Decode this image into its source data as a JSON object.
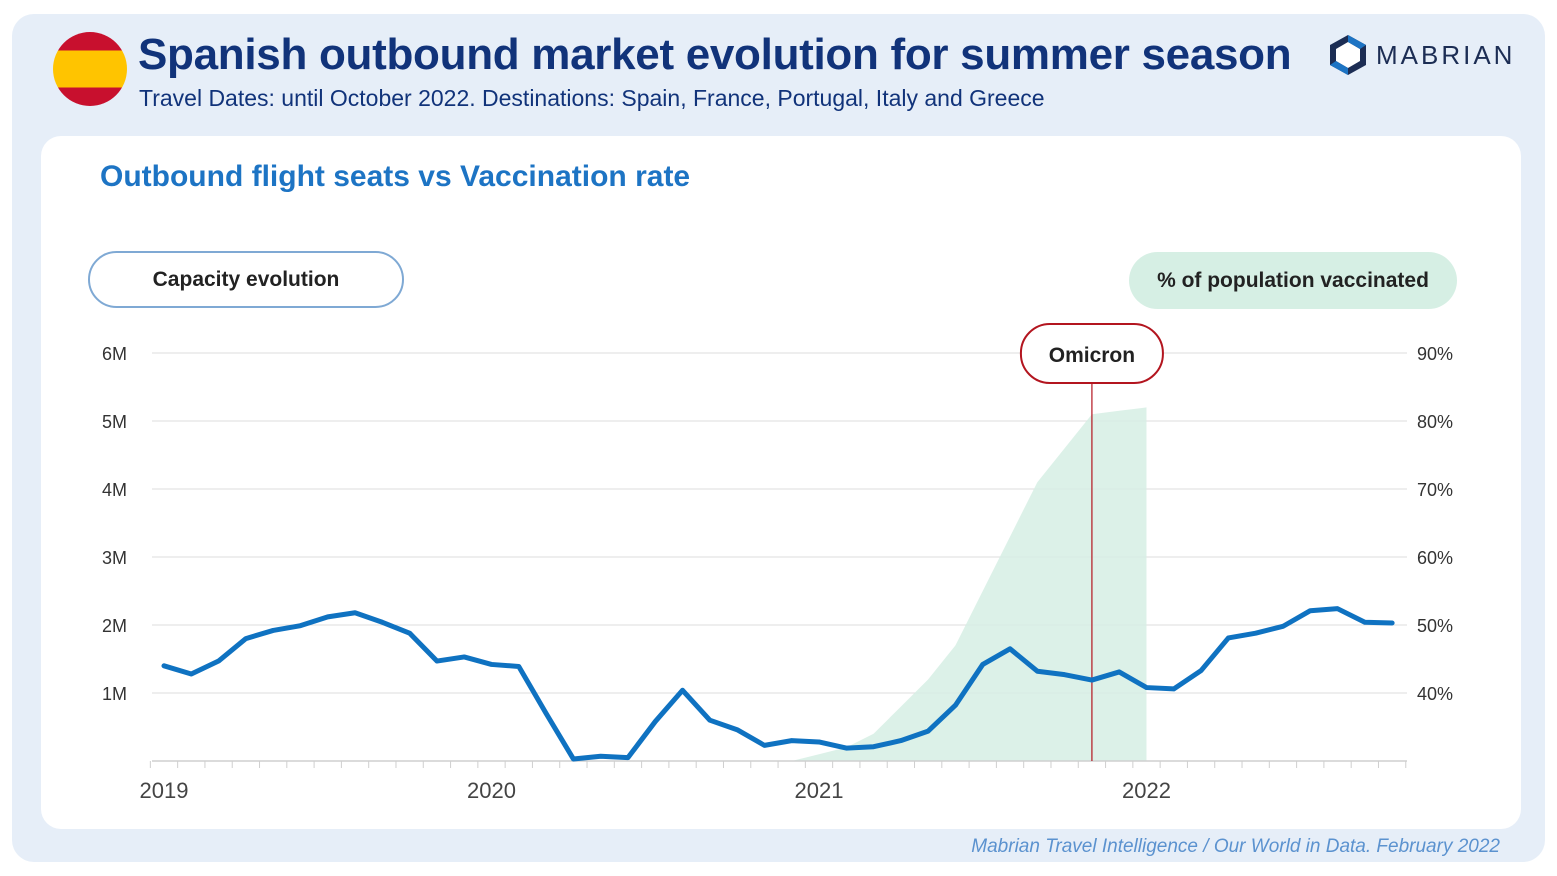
{
  "header": {
    "title": "Spanish outbound market evolution for summer season",
    "subtitle": "Travel Dates: until October 2022. Destinations: Spain, France, Portugal, Italy and Greece",
    "logo_text": "MABRIAN"
  },
  "colors": {
    "title": "#11337a",
    "chart_title": "#1d74c4",
    "seats_line": "#0f72c1",
    "vaccination_area": "#d6efe4",
    "omicron_marker": "#b3151f",
    "flag_red": "#c8102e",
    "flag_yellow": "#ffc400"
  },
  "legend": {
    "left_pill": "Capacity evolution",
    "right_pill": "% of population vaccinated"
  },
  "source": "Mabrian Travel Intelligence / Our World in Data. February 2022",
  "chart_data": {
    "type": "line",
    "title": "Outbound flight seats vs Vaccination rate",
    "x_axis": {
      "ticks": [
        "2019",
        "2020",
        "2021",
        "2022"
      ],
      "range": [
        "2019-01",
        "2022-10"
      ]
    },
    "y_left": {
      "ticks": [
        "1M",
        "2M",
        "3M",
        "4M",
        "5M",
        "6M"
      ],
      "range": [
        0,
        6000000
      ]
    },
    "y_right": {
      "ticks": [
        "40%",
        "50%",
        "60%",
        "70%",
        "80%",
        "90%"
      ],
      "range": [
        30,
        90
      ]
    },
    "grid": true,
    "series": [
      {
        "axis": "left",
        "kind": "line",
        "x": [
          "2019-01",
          "2019-02",
          "2019-03",
          "2019-04",
          "2019-05",
          "2019-06",
          "2019-07",
          "2019-08",
          "2019-09",
          "2019-10",
          "2019-11",
          "2019-12",
          "2020-01",
          "2020-02",
          "2020-03",
          "2020-04",
          "2020-05",
          "2020-06",
          "2020-07",
          "2020-08",
          "2020-09",
          "2020-10",
          "2020-11",
          "2020-12",
          "2021-01",
          "2021-02",
          "2021-03",
          "2021-04",
          "2021-05",
          "2021-06",
          "2021-07",
          "2021-08",
          "2021-09",
          "2021-10",
          "2021-11",
          "2021-12",
          "2022-01",
          "2022-02",
          "2022-03",
          "2022-04",
          "2022-05",
          "2022-06",
          "2022-07",
          "2022-08",
          "2022-09",
          "2022-10"
        ],
        "values": [
          1400000,
          1280000,
          1470000,
          1800000,
          1920000,
          1990000,
          2120000,
          2180000,
          2040000,
          1880000,
          1470000,
          1530000,
          1420000,
          1390000,
          700000,
          30000,
          70000,
          50000,
          580000,
          1040000,
          600000,
          460000,
          230000,
          300000,
          280000,
          190000,
          210000,
          300000,
          440000,
          820000,
          1420000,
          1650000,
          1320000,
          1270000,
          1190000,
          1310000,
          1080000,
          1060000,
          1330000,
          1810000,
          1880000,
          1980000,
          2210000,
          2240000,
          2040000,
          2030000
        ]
      },
      {
        "axis": "right",
        "kind": "area",
        "x": [
          "2020-12",
          "2021-01",
          "2021-02",
          "2021-03",
          "2021-04",
          "2021-05",
          "2021-06",
          "2021-07",
          "2021-08",
          "2021-09",
          "2021-10",
          "2021-11",
          "2021-12",
          "2022-01"
        ],
        "values": [
          30,
          31,
          32,
          34,
          38,
          42,
          47,
          55,
          63,
          71,
          76,
          81,
          81.5,
          82
        ]
      }
    ],
    "annotations": [
      {
        "label": "Omicron",
        "x": "2021-11"
      }
    ]
  }
}
